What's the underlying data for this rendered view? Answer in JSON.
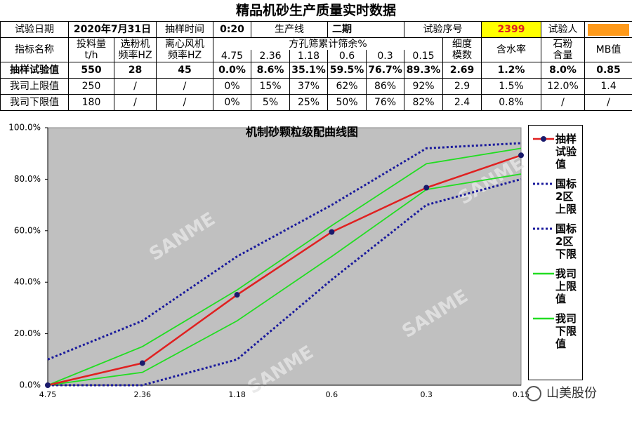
{
  "title": "精品机砂生产质量实时数据",
  "table": {
    "info": [
      "试验日期",
      "2020年7月31日",
      "抽样时间",
      "0:20",
      "生产线",
      "二期",
      "试验序号",
      "2399",
      "试验人"
    ],
    "header": [
      "指标名称",
      "投料量\nt/h",
      "选粉机\n频率HZ",
      "离心风机\n频率HZ",
      "方孔筛累计筛余%",
      "细度\n模数",
      "含水率",
      "石粉\n含量",
      "MB值"
    ],
    "sieves": [
      "4.75",
      "2.36",
      "1.18",
      "0.6",
      "0.3",
      "0.15"
    ],
    "rows": [
      [
        "抽样试验值",
        "550",
        "28",
        "45",
        "0.0%",
        "8.6%",
        "35.1%",
        "59.5%",
        "76.7%",
        "89.3%",
        "2.69",
        "1.2%",
        "8.0%",
        "0.85"
      ],
      [
        "我司上限值",
        "250",
        "/",
        "/",
        "0%",
        "15%",
        "37%",
        "62%",
        "86%",
        "92%",
        "2.9",
        "1.5%",
        "12.0%",
        "1.4"
      ],
      [
        "我司下限值",
        "180",
        "/",
        "/",
        "0%",
        "5%",
        "25%",
        "50%",
        "76%",
        "82%",
        "2.4",
        "0.8%",
        "/",
        "/"
      ]
    ]
  },
  "chart_data": {
    "type": "line",
    "title": "机制砂颗粒级配曲线图",
    "categories": [
      "4.75",
      "2.36",
      "1.18",
      "0.6",
      "0.3",
      "0.15"
    ],
    "ylim": [
      0,
      100
    ],
    "yticks": [
      {
        "value": 0,
        "label": "0.0%"
      },
      {
        "value": 20,
        "label": "20.0%"
      },
      {
        "value": 40,
        "label": "40.0%"
      },
      {
        "value": 60,
        "label": "60.0%"
      },
      {
        "value": 80,
        "label": "80.0%"
      },
      {
        "value": 100,
        "label": "100.0%"
      }
    ],
    "legend": "right",
    "series": [
      {
        "name": "抽样试验值",
        "color": "#e02020",
        "style": "solid",
        "markers": true,
        "values": [
          0,
          8.6,
          35.1,
          59.5,
          76.7,
          89.3
        ]
      },
      {
        "name": "国标2区上限",
        "color": "#1a1a9c",
        "style": "dotted",
        "markers": false,
        "values": [
          10,
          25,
          50,
          70,
          92,
          94
        ]
      },
      {
        "name": "国标2区下限",
        "color": "#1a1a9c",
        "style": "dotted",
        "markers": false,
        "values": [
          0,
          0,
          10,
          41,
          70,
          80
        ]
      },
      {
        "name": "我司上限值",
        "color": "#22dd22",
        "style": "solid",
        "markers": false,
        "values": [
          0,
          15,
          37,
          62,
          86,
          92
        ]
      },
      {
        "name": "我司下限值",
        "color": "#22dd22",
        "style": "solid",
        "markers": false,
        "values": [
          0,
          5,
          25,
          50,
          76,
          82
        ]
      }
    ]
  },
  "watermark": "SANME",
  "brand": "山美股份"
}
